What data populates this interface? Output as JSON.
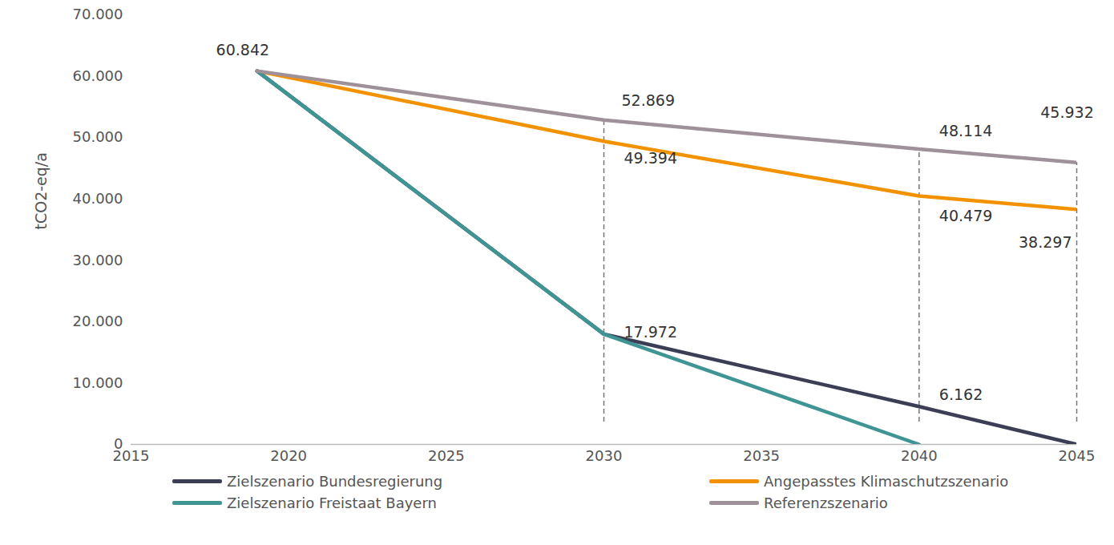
{
  "chart_data": {
    "type": "line",
    "y_label": "tCO2-eq/a",
    "x": [
      2019,
      2030,
      2040,
      2045
    ],
    "series": [
      {
        "name": "Zielszenario Bundesregierung",
        "color": "#3c3e55",
        "values": [
          60842,
          17972,
          6162,
          0
        ]
      },
      {
        "name": "Angepasstes Klimaschutzszenario",
        "color": "#f39200",
        "values": [
          60842,
          49394,
          40479,
          38297
        ]
      },
      {
        "name": "Zielszenario Freistaat Bayern",
        "color": "#3f9494",
        "values": [
          60842,
          17972,
          0,
          null
        ]
      },
      {
        "name": "Referenzszenario",
        "color": "#9e9199",
        "values": [
          60842,
          52869,
          48114,
          45932
        ]
      }
    ],
    "annotations": [
      {
        "x": 2019,
        "y": 60842,
        "label": "60.842"
      },
      {
        "x": 2030,
        "y": 52869,
        "label": "52.869"
      },
      {
        "x": 2030,
        "y": 49394,
        "label": "49.394"
      },
      {
        "x": 2030,
        "y": 17972,
        "label": "17.972"
      },
      {
        "x": 2040,
        "y": 48114,
        "label": "48.114"
      },
      {
        "x": 2040,
        "y": 40479,
        "label": "40.479"
      },
      {
        "x": 2040,
        "y": 6162,
        "label": "6.162"
      },
      {
        "x": 2045,
        "y": 45932,
        "label": "45.932"
      },
      {
        "x": 2045,
        "y": 38297,
        "label": "38.297"
      }
    ],
    "xlim": [
      2015,
      2045
    ],
    "xticks": [
      2015,
      2020,
      2025,
      2030,
      2035,
      2040,
      2045
    ],
    "ylim": [
      0,
      70000
    ],
    "yticks": [
      {
        "value": 0,
        "label": "0"
      },
      {
        "value": 10000,
        "label": "10.000"
      },
      {
        "value": 20000,
        "label": "20.000"
      },
      {
        "value": 30000,
        "label": "30.000"
      },
      {
        "value": 40000,
        "label": "40.000"
      },
      {
        "value": 50000,
        "label": "50.000"
      },
      {
        "value": 60000,
        "label": "60.000"
      },
      {
        "value": 70000,
        "label": "70.000"
      }
    ],
    "grid": false
  }
}
